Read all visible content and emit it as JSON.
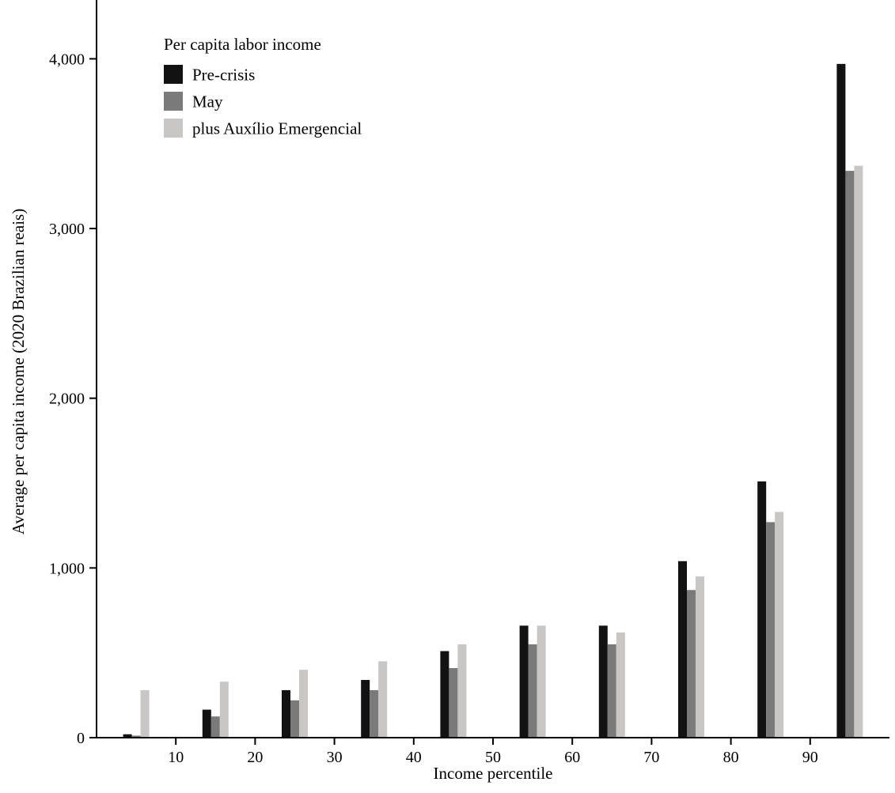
{
  "chart_data": {
    "type": "bar",
    "title": "",
    "xlabel": "Income percentile",
    "ylabel": "Average per capita income (2020 Brazilian reais)",
    "xlim": [
      0,
      100
    ],
    "ylim": [
      0,
      4300
    ],
    "x_ticks": [
      "10",
      "20",
      "30",
      "40",
      "50",
      "60",
      "70",
      "80",
      "90"
    ],
    "x_tick_values": [
      10,
      20,
      30,
      40,
      50,
      60,
      70,
      80,
      90
    ],
    "y_ticks": [
      0,
      1000,
      2000,
      3000,
      4000
    ],
    "y_tick_labels": [
      "0",
      "1,000",
      "2,000",
      "3,000",
      "4,000"
    ],
    "grid": "off",
    "legend": {
      "position": "top-left-inside",
      "title": "Per capita labor income",
      "entries": [
        {
          "label": "Pre-crisis",
          "color": "#121212"
        },
        {
          "label": "May",
          "color": "#7a7a7a"
        },
        {
          "label": "plus Auxílio Emergencial",
          "color": "#c9c6c6"
        }
      ]
    },
    "group_centers": [
      5,
      15,
      25,
      35,
      45,
      55,
      65,
      75,
      85,
      95
    ],
    "series": [
      {
        "name": "Pre-crisis",
        "color": "#121212",
        "values": [
          20,
          165,
          280,
          340,
          510,
          660,
          660,
          1040,
          1510,
          3970
        ]
      },
      {
        "name": "May",
        "color": "#7a7a7a",
        "values": [
          12,
          125,
          220,
          280,
          410,
          550,
          550,
          870,
          1270,
          3340
        ]
      },
      {
        "name": "plus Auxílio Emergencial",
        "color": "#c9c6c6",
        "values": [
          280,
          330,
          400,
          450,
          550,
          660,
          620,
          950,
          1330,
          3370
        ]
      }
    ]
  }
}
